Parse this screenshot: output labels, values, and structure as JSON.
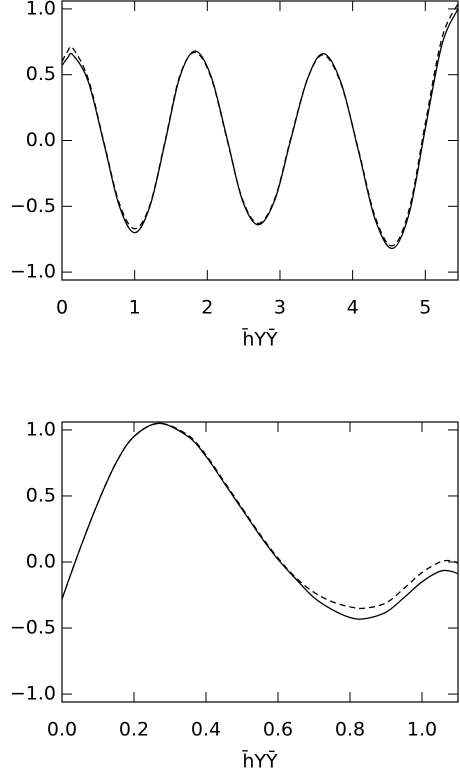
{
  "chart_data": [
    {
      "type": "line",
      "x_label": "h̄YȲ",
      "xlim": [
        0,
        5.45
      ],
      "ylim": [
        -1.06,
        1.06
      ],
      "xticks": [
        0,
        1,
        2,
        3,
        4,
        5
      ],
      "yticks": [
        {
          "value": -1,
          "label": "−1.0"
        },
        {
          "value": -0.5,
          "label": "−0.5"
        },
        {
          "value": 0,
          "label": "0.0"
        },
        {
          "value": 0.5,
          "label": "0.5"
        },
        {
          "value": 1,
          "label": "1.0"
        }
      ],
      "x": [
        0,
        0.08,
        0.15,
        0.36,
        0.58,
        0.79,
        1.0,
        1.21,
        1.42,
        1.62,
        1.83,
        2.05,
        2.27,
        2.48,
        2.7,
        2.93,
        3.15,
        3.38,
        3.6,
        3.84,
        4.08,
        4.31,
        4.55,
        4.78,
        5.0,
        5.23,
        5.45
      ],
      "series": [
        {
          "color": "#000000",
          "style": "solid",
          "values": [
            0.57,
            0.63,
            0.65,
            0.45,
            -0.03,
            -0.5,
            -0.7,
            -0.5,
            -0.01,
            0.48,
            0.68,
            0.49,
            0.02,
            -0.45,
            -0.64,
            -0.45,
            0.01,
            0.47,
            0.66,
            0.44,
            -0.08,
            -0.6,
            -0.82,
            -0.55,
            0.09,
            0.73,
            1.0
          ]
        },
        {
          "color": "#000000",
          "style": "dashed",
          "values": [
            0.6,
            0.68,
            0.7,
            0.47,
            -0.02,
            -0.48,
            -0.67,
            -0.49,
            0.0,
            0.49,
            0.67,
            0.48,
            0.01,
            -0.44,
            -0.63,
            -0.44,
            0.02,
            0.47,
            0.65,
            0.43,
            -0.07,
            -0.58,
            -0.8,
            -0.52,
            0.13,
            0.78,
            1.04
          ]
        }
      ]
    },
    {
      "type": "line",
      "x_label": "h̄YȲ",
      "xlim": [
        0,
        1.1
      ],
      "ylim": [
        -1.06,
        1.06
      ],
      "xticks": [
        {
          "value": 0,
          "label": "0.0"
        },
        0.2,
        0.4,
        0.6,
        0.8,
        {
          "value": 1,
          "label": "1.0"
        }
      ],
      "yticks": [
        {
          "value": -1,
          "label": "−1.0"
        },
        {
          "value": -0.5,
          "label": "−0.5"
        },
        {
          "value": 0,
          "label": "0.0"
        },
        {
          "value": 0.5,
          "label": "0.5"
        },
        {
          "value": 1,
          "label": "1.0"
        }
      ],
      "x": [
        0,
        0.05,
        0.1,
        0.15,
        0.2,
        0.27,
        0.35,
        0.4,
        0.45,
        0.5,
        0.55,
        0.6,
        0.65,
        0.7,
        0.75,
        0.8,
        0.84,
        0.9,
        0.95,
        1.0,
        1.05,
        1.08,
        1.1
      ],
      "series": [
        {
          "color": "#000000",
          "style": "solid",
          "values": [
            -0.28,
            0.1,
            0.45,
            0.75,
            0.95,
            1.05,
            0.95,
            0.8,
            0.6,
            0.4,
            0.2,
            0.02,
            -0.13,
            -0.27,
            -0.36,
            -0.42,
            -0.43,
            -0.38,
            -0.27,
            -0.15,
            -0.07,
            -0.07,
            -0.09
          ]
        },
        {
          "color": "#000000",
          "style": "dashed",
          "values": [
            -0.28,
            0.1,
            0.45,
            0.75,
            0.95,
            1.05,
            0.96,
            0.81,
            0.61,
            0.41,
            0.21,
            0.03,
            -0.12,
            -0.23,
            -0.3,
            -0.34,
            -0.35,
            -0.31,
            -0.2,
            -0.08,
            0.0,
            0.01,
            -0.01
          ]
        }
      ]
    }
  ]
}
